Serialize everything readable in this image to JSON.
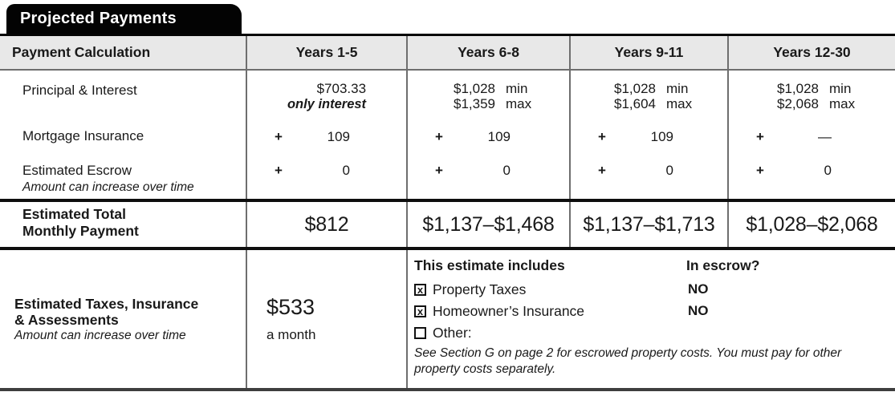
{
  "tab_title": "Projected Payments",
  "header": {
    "label": "Payment Calculation",
    "columns": [
      "Years 1-5",
      "Years 6-8",
      "Years 9-11",
      "Years 12-30"
    ]
  },
  "rows": {
    "principal_interest": {
      "label": "Principal & Interest",
      "y1_5": {
        "amount": "$703.33",
        "note": "only interest"
      },
      "y6_8": {
        "min": "$1,028",
        "min_label": "min",
        "max": "$1,359",
        "max_label": "max"
      },
      "y9_11": {
        "min": "$1,028",
        "min_label": "min",
        "max": "$1,604",
        "max_label": "max"
      },
      "y12_30": {
        "min": "$1,028",
        "min_label": "min",
        "max": "$2,068",
        "max_label": "max"
      }
    },
    "mortgage_insurance": {
      "label": "Mortgage Insurance",
      "plus": "+",
      "values": [
        "109",
        "109",
        "109",
        "—"
      ]
    },
    "estimated_escrow": {
      "label": "Estimated Escrow",
      "sublabel": "Amount can increase over time",
      "plus": "+",
      "values": [
        "0",
        "0",
        "0",
        "0"
      ]
    },
    "total": {
      "label_line1": "Estimated Total",
      "label_line2": "Monthly Payment",
      "values": [
        "$812",
        "$1,137–$1,468",
        "$1,137–$1,713",
        "$1,028–$2,068"
      ]
    }
  },
  "bottom": {
    "label_line1": "Estimated Taxes, Insurance",
    "label_line2": "& Assessments",
    "sublabel": "Amount can increase over time",
    "amount": "$533",
    "per": "a month",
    "includes_title": "This estimate includes",
    "escrow_title": "In escrow?",
    "items": [
      {
        "mark": "x",
        "label": "Property Taxes",
        "escrow": "NO"
      },
      {
        "mark": "x",
        "label": "Homeowner’s Insurance",
        "escrow": "NO"
      },
      {
        "mark": "",
        "label": "Other:",
        "escrow": ""
      }
    ],
    "note": "See Section G on page 2 for escrowed property costs. You must pay for other property costs separately."
  },
  "colors": {
    "tab_bg": "#030303",
    "header_bg": "#e8e8e8",
    "border_gray": "#6e6e6e",
    "rule_black": "#0e0e0e"
  }
}
